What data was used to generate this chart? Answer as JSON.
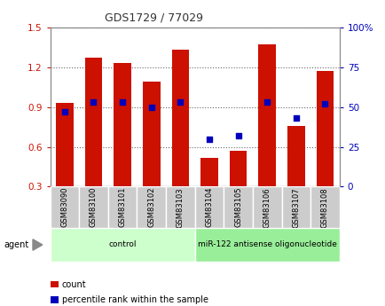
{
  "title": "GDS1729 / 77029",
  "categories": [
    "GSM83090",
    "GSM83100",
    "GSM83101",
    "GSM83102",
    "GSM83103",
    "GSM83104",
    "GSM83105",
    "GSM83106",
    "GSM83107",
    "GSM83108"
  ],
  "red_values": [
    0.93,
    1.27,
    1.23,
    1.09,
    1.33,
    0.52,
    0.57,
    1.37,
    0.76,
    1.17
  ],
  "blue_values": [
    47,
    53,
    53,
    50,
    53,
    30,
    32,
    53,
    43,
    52
  ],
  "ylim_left": [
    0.3,
    1.5
  ],
  "ylim_right": [
    0,
    100
  ],
  "yticks_left": [
    0.3,
    0.6,
    0.9,
    1.2,
    1.5
  ],
  "yticks_right": [
    0,
    25,
    50,
    75,
    100
  ],
  "bar_color": "#cc1100",
  "dot_color": "#0000bb",
  "bar_width": 0.6,
  "groups": [
    {
      "label": "control",
      "start": 0,
      "end": 5,
      "color": "#ccffcc"
    },
    {
      "label": "miR-122 antisense oligonucleotide",
      "start": 5,
      "end": 10,
      "color": "#99ee99"
    }
  ],
  "legend_items": [
    {
      "label": "count",
      "color": "#cc1100"
    },
    {
      "label": "percentile rank within the sample",
      "color": "#0000bb"
    }
  ],
  "agent_label": "agent",
  "background_color": "#ffffff",
  "cat_bg": "#cccccc",
  "border_color": "#888888"
}
